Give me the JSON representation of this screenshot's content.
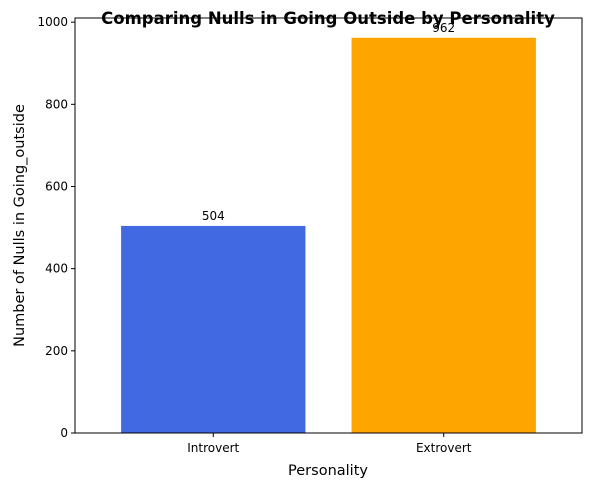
{
  "chart_data": {
    "type": "bar",
    "title": "Comparing Nulls in Going Outside by Personality",
    "xlabel": "Personality",
    "ylabel": "Number of Nulls in Going_outside",
    "categories": [
      "Introvert",
      "Extrovert"
    ],
    "values": [
      504,
      962
    ],
    "data_labels": [
      "504",
      "962"
    ],
    "colors": [
      "#4169E1",
      "#FFA500"
    ],
    "ylim": [
      0,
      1010.1
    ],
    "yticks": [
      0,
      200,
      400,
      600,
      800,
      1000
    ],
    "ytick_labels": [
      "0",
      "200",
      "400",
      "600",
      "800",
      "1000"
    ],
    "grid": false,
    "legend": false
  }
}
